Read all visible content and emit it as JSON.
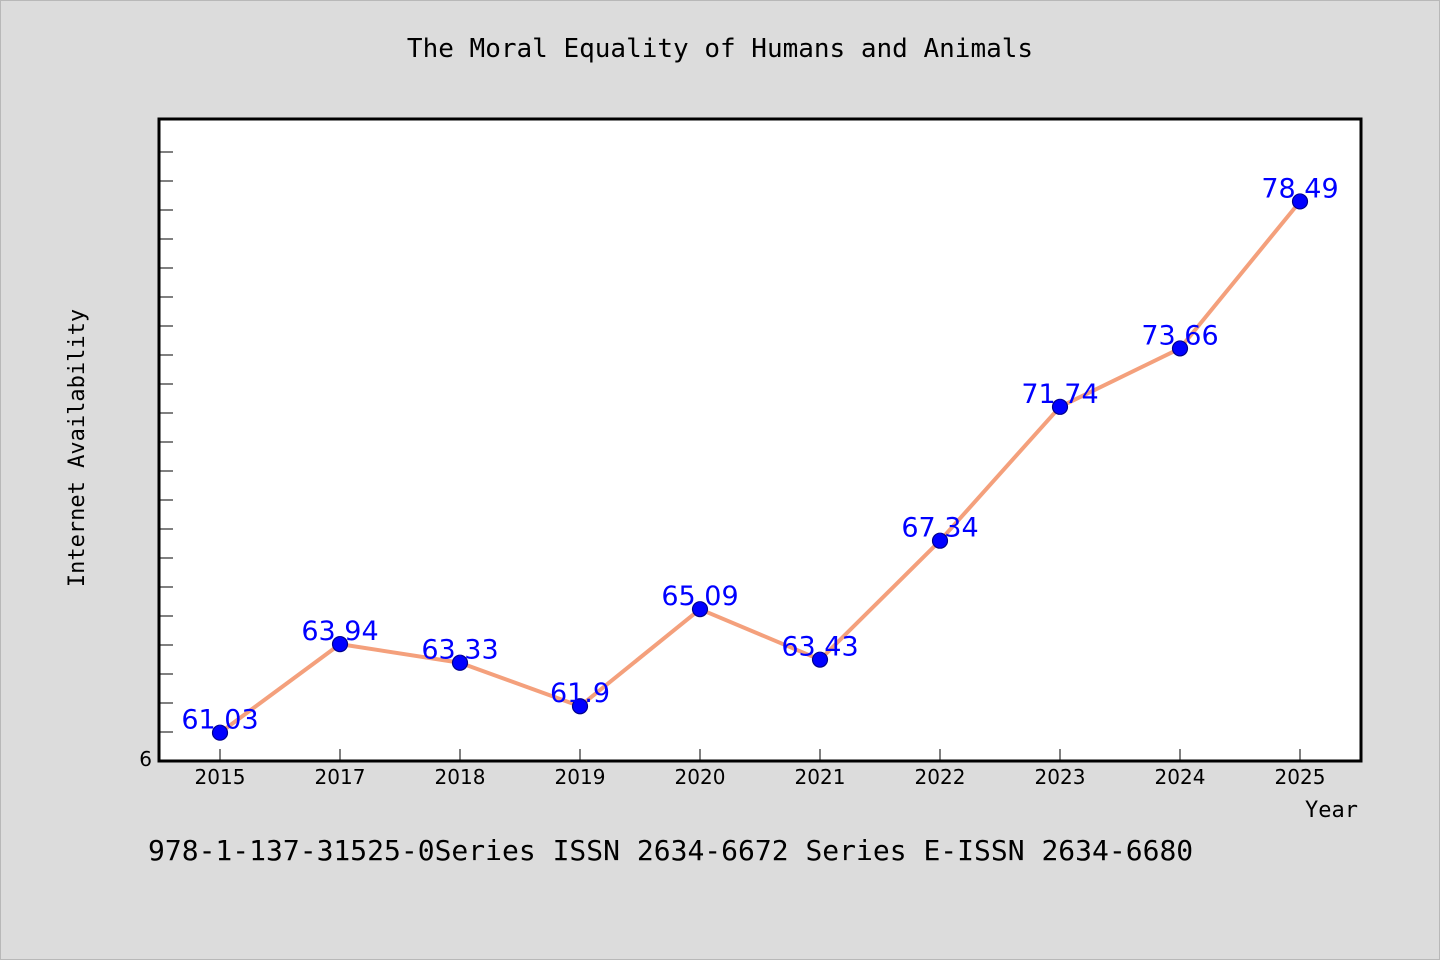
{
  "chart_data": {
    "type": "line",
    "title": "The Moral Equality of Humans and Animals",
    "xlabel": "Year",
    "ylabel": "Internet Availability",
    "categories": [
      "2015",
      "2017",
      "2018",
      "2019",
      "2020",
      "2021",
      "2022",
      "2023",
      "2024",
      "2025"
    ],
    "series": [
      {
        "values": [
          61.03,
          63.94,
          63.33,
          61.9,
          65.09,
          63.43,
          67.34,
          71.74,
          73.66,
          78.49
        ],
        "labels": [
          "61.03",
          "63.94",
          "63.33",
          "61.9",
          "65.09",
          "63.43",
          "67.34",
          "71.74",
          "73.66",
          "78.49"
        ]
      }
    ],
    "y_tick_label": "6",
    "ylim": [
      60.1,
      81.2
    ],
    "grid": false,
    "legend": "none",
    "colors": {
      "line": "#f4a07c",
      "marker": "#0000ff",
      "marker_edge": "#00008b",
      "data_label": "#0000ff",
      "plot_bg": "#ffffff",
      "page_bg": "#dcdcdc"
    }
  },
  "footer": "978-1-137-31525-0Series ISSN 2634-6672 Series E-ISSN 2634-6680"
}
